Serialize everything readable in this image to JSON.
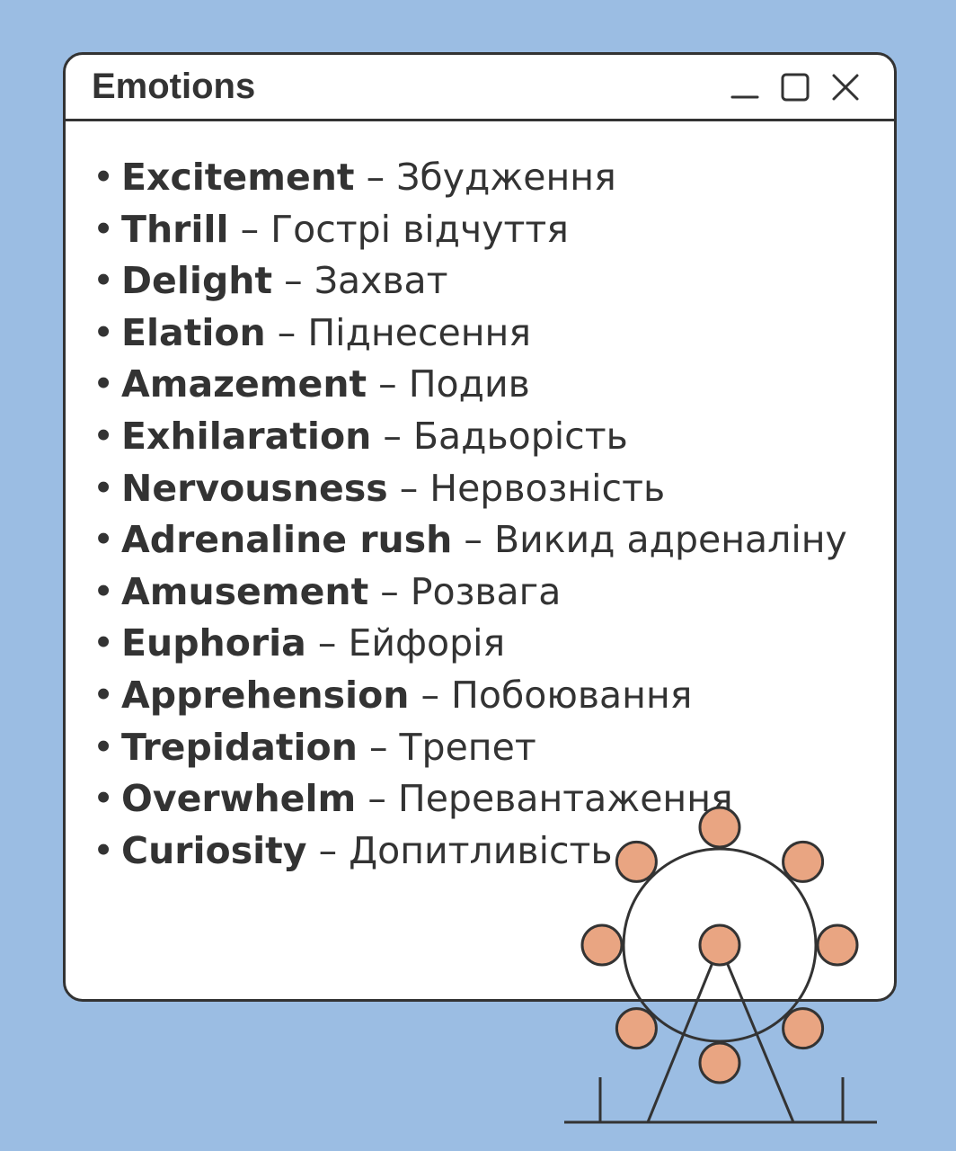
{
  "window": {
    "title": "Emotions",
    "controls": {
      "minimize_icon": "minimize-icon",
      "maximize_icon": "maximize-icon",
      "close_icon": "close-icon"
    }
  },
  "emotions": [
    {
      "term": "Excitement",
      "translation": "Збудження"
    },
    {
      "term": "Thrill",
      "translation": "Гострі відчуття"
    },
    {
      "term": "Delight",
      "translation": "Захват"
    },
    {
      "term": "Elation",
      "translation": "Піднесення"
    },
    {
      "term": "Amazement",
      "translation": "Подив"
    },
    {
      "term": "Exhilaration",
      "translation": "Бадьорість"
    },
    {
      "term": "Nervousness",
      "translation": "Нервозність"
    },
    {
      "term": "Adrenaline rush",
      "translation": "Викид адреналіну"
    },
    {
      "term": "Amusement",
      "translation": "Розвага"
    },
    {
      "term": "Euphoria",
      "translation": "Ейфорія"
    },
    {
      "term": "Apprehension",
      "translation": "Побоювання"
    },
    {
      "term": "Trepidation",
      "translation": "Трепет"
    },
    {
      "term": "Overwhelm",
      "translation": "Перевантаження"
    },
    {
      "term": "Curiosity",
      "translation": "Допитливість"
    }
  ],
  "list_bullet": "•",
  "list_separator": "–",
  "colors": {
    "background": "#9bbde3",
    "window": "#ffffff",
    "outline": "#333333",
    "gondola": "#e9a582"
  },
  "illustration": "ferris-wheel"
}
